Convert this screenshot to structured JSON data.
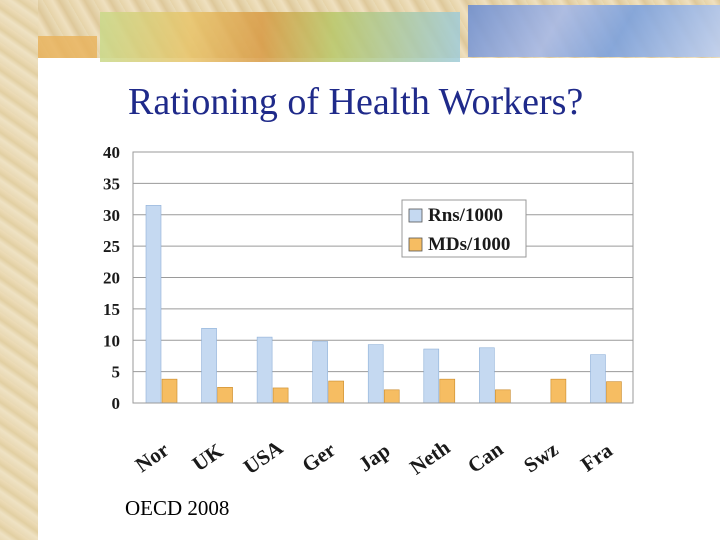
{
  "slide": {
    "title": "Rationing of Health Workers?",
    "source": "OECD 2008"
  },
  "colors": {
    "title": "#1f2a8a",
    "rns": "#c5d9f1",
    "mds": "#f6bd62",
    "axis_text": "#1a1a1a"
  },
  "chart_data": {
    "type": "bar",
    "categories": [
      "Nor",
      "UK",
      "USA",
      "Ger",
      "Jap",
      "Neth",
      "Can",
      "Swz",
      "Fra"
    ],
    "series": [
      {
        "name": "Rns/1000",
        "values": [
          31.5,
          11.9,
          10.5,
          9.8,
          9.3,
          8.6,
          8.8,
          null,
          7.7
        ]
      },
      {
        "name": "MDs/1000",
        "values": [
          3.8,
          2.5,
          2.4,
          3.5,
          2.1,
          3.8,
          2.1,
          3.8,
          3.4
        ]
      }
    ],
    "yticks": [
      "0",
      "5",
      "10",
      "15",
      "20",
      "25",
      "30",
      "35",
      "40"
    ],
    "ylim": [
      0,
      40
    ],
    "grid": true,
    "legend_position": "top-right",
    "title": "",
    "xlabel": "",
    "ylabel": ""
  }
}
